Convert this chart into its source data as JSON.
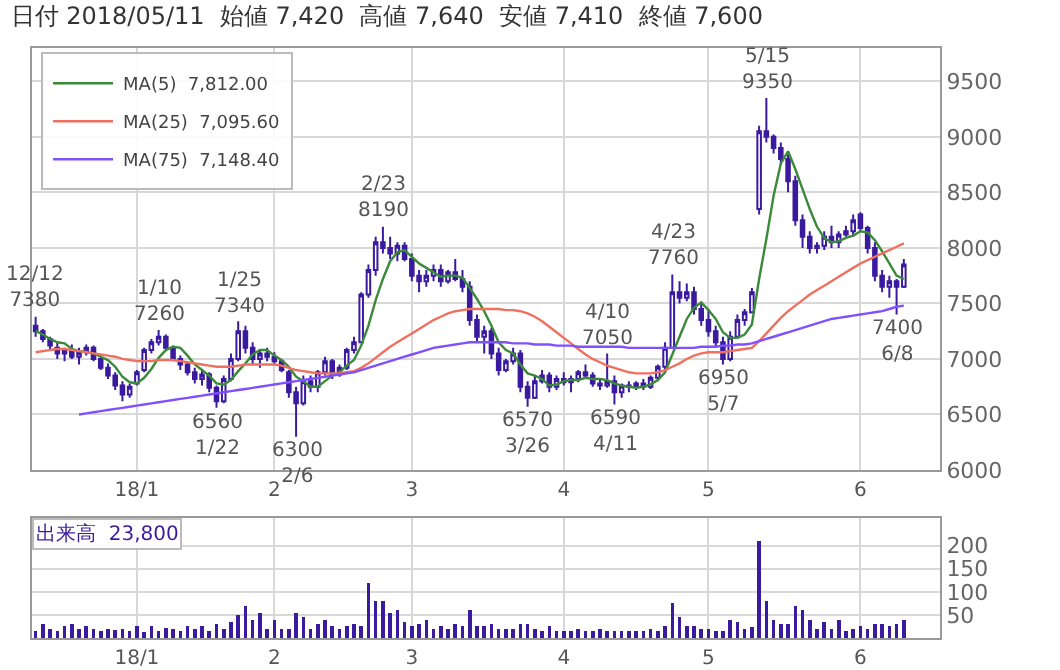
{
  "chart_data": [
    {
      "type": "candlestick",
      "title": "日付 2018/05/11  始値 7,420  高値 7,640  安値 7,410  終値 7,600",
      "categories": [
        null,
        null,
        null,
        null,
        null,
        null,
        null,
        null,
        null,
        null,
        null,
        null,
        null,
        null,
        "18/1",
        null,
        null,
        null,
        null,
        null,
        null,
        null,
        null,
        null,
        null,
        null,
        null,
        null,
        null,
        null,
        null,
        null,
        null,
        "2",
        null,
        null,
        null,
        null,
        null,
        null,
        null,
        null,
        null,
        null,
        null,
        null,
        null,
        null,
        null,
        null,
        null,
        null,
        "3",
        null,
        null,
        null,
        null,
        null,
        null,
        null,
        null,
        null,
        null,
        null,
        null,
        null,
        null,
        null,
        null,
        null,
        null,
        null,
        null,
        "4",
        null,
        null,
        null,
        null,
        null,
        null,
        null,
        null,
        null,
        null,
        null,
        null,
        null,
        null,
        null,
        null,
        null,
        null,
        null,
        "5",
        null,
        null,
        null,
        null,
        null,
        null,
        null,
        null,
        null,
        null,
        null,
        null,
        null,
        null,
        null,
        null,
        null,
        null,
        null,
        null,
        "6",
        null,
        null,
        null,
        null,
        null,
        null
      ],
      "ohlc": [
        [
          7300,
          7380,
          7200,
          7250
        ],
        [
          7250,
          7270,
          7150,
          7180
        ],
        [
          7180,
          7200,
          7080,
          7120
        ],
        [
          7100,
          7150,
          7000,
          7050
        ],
        [
          7050,
          7100,
          6980,
          7080
        ],
        [
          7080,
          7130,
          7000,
          7020
        ],
        [
          7020,
          7100,
          6950,
          7060
        ],
        [
          7060,
          7130,
          7030,
          7100
        ],
        [
          7100,
          7120,
          6980,
          7000
        ],
        [
          7000,
          7030,
          6900,
          6920
        ],
        [
          6920,
          6960,
          6820,
          6850
        ],
        [
          6850,
          6880,
          6720,
          6760
        ],
        [
          6760,
          6800,
          6620,
          6680
        ],
        [
          6680,
          6780,
          6650,
          6750
        ],
        [
          6780,
          6900,
          6760,
          6880
        ],
        [
          6900,
          7100,
          6880,
          7080
        ],
        [
          7080,
          7180,
          7050,
          7150
        ],
        [
          7150,
          7260,
          7120,
          7200
        ],
        [
          7200,
          7220,
          7080,
          7100
        ],
        [
          7100,
          7120,
          6980,
          7000
        ],
        [
          7000,
          7030,
          6900,
          6950
        ],
        [
          6950,
          6980,
          6850,
          6880
        ],
        [
          6880,
          6920,
          6780,
          6820
        ],
        [
          6820,
          6900,
          6760,
          6860
        ],
        [
          6860,
          6880,
          6700,
          6740
        ],
        [
          6740,
          6760,
          6560,
          6620
        ],
        [
          6620,
          6850,
          6600,
          6820
        ],
        [
          6820,
          7050,
          6800,
          7000
        ],
        [
          7000,
          7340,
          6980,
          7250
        ],
        [
          7250,
          7300,
          7050,
          7100
        ],
        [
          7100,
          7150,
          6950,
          7000
        ],
        [
          7000,
          7080,
          6920,
          7050
        ],
        [
          7050,
          7100,
          6980,
          7020
        ],
        [
          7020,
          7060,
          6950,
          6980
        ],
        [
          6980,
          7000,
          6880,
          6900
        ],
        [
          6880,
          6900,
          6650,
          6700
        ],
        [
          6700,
          6750,
          6300,
          6600
        ],
        [
          6600,
          6850,
          6580,
          6800
        ],
        [
          6800,
          6850,
          6700,
          6750
        ],
        [
          6750,
          6900,
          6700,
          6880
        ],
        [
          6880,
          7020,
          6850,
          6980
        ],
        [
          6980,
          7000,
          6820,
          6860
        ],
        [
          6860,
          6950,
          6840,
          6920
        ],
        [
          6920,
          7100,
          6900,
          7080
        ],
        [
          7080,
          7200,
          7050,
          7150
        ],
        [
          7150,
          7600,
          7150,
          7580
        ],
        [
          7580,
          7850,
          7550,
          7800
        ],
        [
          7800,
          8100,
          7750,
          8050
        ],
        [
          8050,
          8190,
          7950,
          8000
        ],
        [
          8000,
          8100,
          7900,
          7950
        ],
        [
          7950,
          8050,
          7880,
          8020
        ],
        [
          8020,
          8050,
          7880,
          7900
        ],
        [
          7900,
          7950,
          7700,
          7750
        ],
        [
          7750,
          7800,
          7600,
          7700
        ],
        [
          7700,
          7800,
          7650,
          7750
        ],
        [
          7750,
          7850,
          7700,
          7800
        ],
        [
          7800,
          7850,
          7650,
          7700
        ],
        [
          7700,
          7800,
          7680,
          7780
        ],
        [
          7780,
          7900,
          7700,
          7720
        ],
        [
          7720,
          7800,
          7600,
          7650
        ],
        [
          7650,
          7700,
          7300,
          7350
        ],
        [
          7350,
          7400,
          7150,
          7200
        ],
        [
          7200,
          7300,
          7050,
          7250
        ],
        [
          7250,
          7280,
          7000,
          7050
        ],
        [
          7050,
          7100,
          6850,
          6900
        ],
        [
          6900,
          7000,
          6880,
          6980
        ],
        [
          6980,
          7100,
          6950,
          7050
        ],
        [
          7050,
          7080,
          6700,
          6750
        ],
        [
          6750,
          6800,
          6570,
          6650
        ],
        [
          6650,
          6850,
          6640,
          6800
        ],
        [
          6800,
          6900,
          6780,
          6850
        ],
        [
          6850,
          6880,
          6700,
          6750
        ],
        [
          6750,
          6850,
          6720,
          6820
        ],
        [
          6820,
          6880,
          6760,
          6790
        ],
        [
          6790,
          6850,
          6700,
          6820
        ],
        [
          6820,
          6900,
          6790,
          6880
        ],
        [
          6880,
          6950,
          6820,
          6850
        ],
        [
          6850,
          6880,
          6750,
          6780
        ],
        [
          6780,
          6820,
          6720,
          6760
        ],
        [
          6760,
          7050,
          6740,
          6800
        ],
        [
          6800,
          6850,
          6590,
          6700
        ],
        [
          6700,
          6780,
          6650,
          6760
        ],
        [
          6760,
          6800,
          6700,
          6750
        ],
        [
          6750,
          6800,
          6720,
          6780
        ],
        [
          6780,
          6820,
          6720,
          6750
        ],
        [
          6750,
          6850,
          6730,
          6830
        ],
        [
          6830,
          6950,
          6800,
          6930
        ],
        [
          6930,
          7150,
          6900,
          7100
        ],
        [
          7100,
          7760,
          7100,
          7600
        ],
        [
          7600,
          7700,
          7500,
          7550
        ],
        [
          7550,
          7680,
          7520,
          7600
        ],
        [
          7600,
          7650,
          7400,
          7450
        ],
        [
          7450,
          7500,
          7300,
          7350
        ],
        [
          7350,
          7450,
          7200,
          7250
        ],
        [
          7250,
          7300,
          7100,
          7150
        ],
        [
          7150,
          7200,
          6950,
          7000
        ],
        [
          7000,
          7250,
          6980,
          7200
        ],
        [
          7200,
          7400,
          7180,
          7350
        ],
        [
          7350,
          7450,
          7300,
          7420
        ],
        [
          7420,
          7640,
          7410,
          7600
        ],
        [
          8350,
          9100,
          8300,
          9050
        ],
        [
          9050,
          9350,
          8950,
          9000
        ],
        [
          9000,
          9020,
          8850,
          8900
        ],
        [
          8900,
          8950,
          8750,
          8800
        ],
        [
          8800,
          8850,
          8500,
          8600
        ],
        [
          8600,
          8650,
          8200,
          8250
        ],
        [
          8250,
          8300,
          8000,
          8100
        ],
        [
          8100,
          8150,
          7950,
          8000
        ],
        [
          8000,
          8050,
          7950,
          8020
        ],
        [
          8020,
          8150,
          7980,
          8100
        ],
        [
          8100,
          8200,
          8000,
          8050
        ],
        [
          8050,
          8150,
          8000,
          8120
        ],
        [
          8120,
          8200,
          8100,
          8150
        ],
        [
          8150,
          8300,
          8100,
          8250
        ],
        [
          8300,
          8320,
          8150,
          8180
        ],
        [
          8180,
          8200,
          7950,
          8000
        ],
        [
          8000,
          8050,
          7700,
          7750
        ],
        [
          7750,
          7800,
          7600,
          7650
        ],
        [
          7650,
          7750,
          7550,
          7700
        ],
        [
          7700,
          7720,
          7400,
          7650
        ],
        [
          7650,
          7900,
          7640,
          7850
        ]
      ],
      "color": "#3a1a9e",
      "series": [
        {
          "name": "MA(5)  7,812.00",
          "type": "line",
          "color": "#3a8a3a",
          "values": [
            7250,
            7220,
            7180,
            7150,
            7140,
            7090,
            7070,
            7060,
            7050,
            7020,
            6990,
            6930,
            6840,
            6790,
            6780,
            6830,
            6910,
            7010,
            7080,
            7110,
            7100,
            7030,
            6950,
            6900,
            6850,
            6780,
            6770,
            6810,
            6890,
            6960,
            7040,
            7080,
            7080,
            7030,
            6990,
            6930,
            6840,
            6800,
            6750,
            6750,
            6800,
            6850,
            6880,
            6940,
            6990,
            7120,
            7300,
            7530,
            7720,
            7880,
            7960,
            7980,
            7920,
            7860,
            7820,
            7780,
            7740,
            7750,
            7750,
            7730,
            7640,
            7540,
            7430,
            7300,
            7150,
            7080,
            7050,
            6950,
            6870,
            6850,
            6820,
            6760,
            6770,
            6800,
            6810,
            6810,
            6830,
            6820,
            6820,
            6810,
            6780,
            6760,
            6750,
            6740,
            6750,
            6770,
            6810,
            6880,
            7040,
            7200,
            7360,
            7460,
            7510,
            7440,
            7360,
            7240,
            7190,
            7190,
            7220,
            7310,
            7720,
            8080,
            8470,
            8760,
            8870,
            8710,
            8530,
            8350,
            8190,
            8090,
            8050,
            8060,
            8090,
            8110,
            8150,
            8140,
            8070,
            7970,
            7860,
            7750,
            7720
          ]
        },
        {
          "name": "MA(25)  7,095.60",
          "type": "line",
          "color": "#f07060",
          "values": [
            7060,
            7070,
            7080,
            7090,
            7090,
            7080,
            7070,
            7060,
            7050,
            7040,
            7030,
            7020,
            7000,
            6990,
            6980,
            6980,
            6980,
            6990,
            6990,
            6990,
            6980,
            6970,
            6960,
            6950,
            6940,
            6930,
            6930,
            6930,
            6940,
            6950,
            6950,
            6950,
            6950,
            6950,
            6940,
            6920,
            6900,
            6890,
            6880,
            6870,
            6870,
            6870,
            6870,
            6880,
            6890,
            6920,
            6960,
            7010,
            7060,
            7110,
            7150,
            7190,
            7230,
            7270,
            7310,
            7350,
            7380,
            7410,
            7430,
            7440,
            7450,
            7450,
            7450,
            7450,
            7450,
            7440,
            7440,
            7430,
            7410,
            7380,
            7340,
            7290,
            7240,
            7190,
            7140,
            7090,
            7040,
            7000,
            6970,
            6940,
            6920,
            6900,
            6880,
            6870,
            6870,
            6870,
            6880,
            6900,
            6930,
            6960,
            7000,
            7030,
            7050,
            7060,
            7060,
            7060,
            7070,
            7080,
            7090,
            7100,
            7160,
            7230,
            7300,
            7370,
            7430,
            7480,
            7530,
            7580,
            7620,
            7660,
            7700,
            7740,
            7780,
            7820,
            7860,
            7890,
            7920,
            7950,
            7980,
            8010,
            8040
          ]
        },
        {
          "name": "MA(75)  7,148.40",
          "type": "line",
          "color": "#8050ff",
          "values": [
            null,
            null,
            null,
            null,
            null,
            null,
            6500,
            6510,
            6520,
            6530,
            6540,
            6550,
            6560,
            6570,
            6580,
            6590,
            6600,
            6610,
            6620,
            6630,
            6640,
            6650,
            6660,
            6670,
            6680,
            6690,
            6700,
            6710,
            6720,
            6730,
            6740,
            6750,
            6760,
            6770,
            6780,
            6790,
            6800,
            6810,
            6820,
            6830,
            6840,
            6850,
            6860,
            6870,
            6880,
            6900,
            6920,
            6940,
            6960,
            6980,
            7000,
            7020,
            7040,
            7060,
            7080,
            7100,
            7110,
            7120,
            7130,
            7140,
            7150,
            7150,
            7150,
            7150,
            7150,
            7150,
            7140,
            7140,
            7140,
            7130,
            7130,
            7130,
            7120,
            7120,
            7120,
            7110,
            7110,
            7110,
            7110,
            7110,
            7110,
            7110,
            7100,
            7100,
            7100,
            7100,
            7100,
            7100,
            7100,
            7100,
            7100,
            7100,
            7110,
            7110,
            7110,
            7120,
            7120,
            7130,
            7130,
            7140,
            7160,
            7180,
            7200,
            7220,
            7240,
            7260,
            7280,
            7300,
            7320,
            7340,
            7360,
            7370,
            7380,
            7390,
            7400,
            7410,
            7420,
            7430,
            7450,
            7470,
            7480
          ]
        }
      ],
      "ylim": [
        6000,
        9800
      ],
      "yticks": [
        6000,
        6500,
        7000,
        7500,
        8000,
        8500,
        9000,
        9500
      ],
      "grid": true,
      "legend": "top left",
      "annotations": [
        {
          "text": "12/12\n7380",
          "y": 7380
        },
        {
          "text": "1/10\n7260",
          "y": 7260
        },
        {
          "text": "1/25\n7340",
          "y": 7340
        },
        {
          "text": "2/23\n8190",
          "y": 8190
        },
        {
          "text": "4/10\n7050",
          "y": 7050
        },
        {
          "text": "4/23\n7760",
          "y": 7760
        },
        {
          "text": "5/15\n9350",
          "y": 9350
        },
        {
          "text": "6560\n1/22",
          "y": 6560
        },
        {
          "text": "6300\n2/6",
          "y": 6300
        },
        {
          "text": "6570\n3/26",
          "y": 6570
        },
        {
          "text": "6590\n4/11",
          "y": 6590
        },
        {
          "text": "6950\n5/7",
          "y": 6950
        },
        {
          "text": "7400\n6/8",
          "y": 7400
        }
      ]
    },
    {
      "type": "bar",
      "categories": [
        null,
        null,
        null,
        null,
        null,
        null,
        null,
        null,
        null,
        null,
        null,
        null,
        null,
        null,
        "18/1",
        null,
        null,
        null,
        null,
        null,
        null,
        null,
        null,
        null,
        null,
        null,
        null,
        null,
        null,
        null,
        null,
        null,
        null,
        "2",
        null,
        null,
        null,
        null,
        null,
        null,
        null,
        null,
        null,
        null,
        null,
        null,
        null,
        null,
        null,
        null,
        null,
        null,
        "3",
        null,
        null,
        null,
        null,
        null,
        null,
        null,
        null,
        null,
        null,
        null,
        null,
        null,
        null,
        null,
        null,
        null,
        null,
        null,
        null,
        "4",
        null,
        null,
        null,
        null,
        null,
        null,
        null,
        null,
        null,
        null,
        null,
        null,
        null,
        null,
        null,
        null,
        null,
        null,
        null,
        "5",
        null,
        null,
        null,
        null,
        null,
        null,
        null,
        null,
        null,
        null,
        null,
        null,
        null,
        null,
        null,
        null,
        null,
        null,
        null,
        null,
        "6",
        null,
        null,
        null,
        null,
        null,
        null
      ],
      "values": [
        15,
        30,
        20,
        15,
        25,
        30,
        20,
        25,
        20,
        15,
        20,
        18,
        20,
        15,
        25,
        12,
        25,
        15,
        22,
        20,
        15,
        25,
        20,
        25,
        15,
        30,
        20,
        35,
        50,
        70,
        40,
        55,
        20,
        40,
        20,
        20,
        55,
        45,
        20,
        30,
        40,
        25,
        20,
        25,
        30,
        25,
        120,
        80,
        80,
        55,
        60,
        35,
        25,
        30,
        40,
        20,
        25,
        20,
        30,
        25,
        60,
        25,
        25,
        30,
        20,
        20,
        20,
        30,
        30,
        20,
        15,
        25,
        15,
        15,
        15,
        20,
        15,
        15,
        20,
        15,
        15,
        15,
        15,
        15,
        15,
        20,
        15,
        25,
        75,
        45,
        25,
        25,
        20,
        20,
        15,
        15,
        40,
        35,
        20,
        24,
        210,
        80,
        40,
        30,
        30,
        70,
        60,
        40,
        20,
        35,
        20,
        40,
        15,
        20,
        25,
        20,
        30,
        30,
        25,
        30,
        40
      ],
      "color": "#3a1a9e",
      "ylim": [
        0,
        260
      ],
      "yticks": [
        50,
        100,
        150,
        200
      ],
      "grid": true,
      "annotations": [
        "出来高  23,800"
      ]
    }
  ]
}
